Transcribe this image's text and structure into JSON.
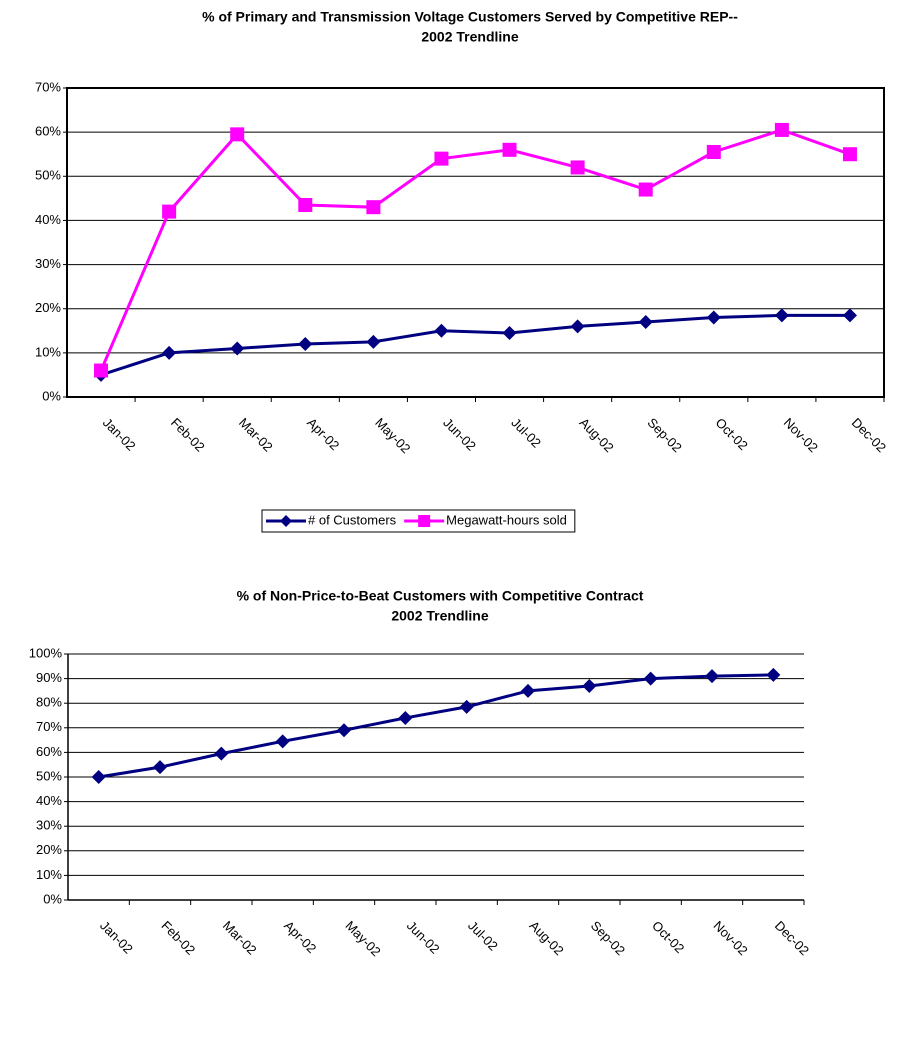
{
  "chart_data": [
    {
      "type": "line",
      "title": [
        "% of Primary and Transmission Voltage Customers Served by Competitive REP--",
        "2002 Trendline"
      ],
      "categories": [
        "Jan-02",
        "Feb-02",
        "Mar-02",
        "Apr-02",
        "May-02",
        "Jun-02",
        "Jul-02",
        "Aug-02",
        "Sep-02",
        "Oct-02",
        "Nov-02",
        "Dec-02"
      ],
      "series": [
        {
          "name": "# of Customers",
          "color": "#000080",
          "marker": "diamond",
          "values": [
            5,
            10,
            11,
            12,
            12.5,
            15,
            14.5,
            16,
            17,
            18,
            18.5,
            18.5
          ]
        },
        {
          "name": "Megawatt-hours sold",
          "color": "#ff00ff",
          "marker": "square",
          "values": [
            6,
            42,
            59.5,
            43.5,
            43,
            54,
            56,
            52,
            47,
            55.5,
            60.5,
            55
          ]
        }
      ],
      "ylim": [
        0,
        70
      ],
      "yticks": [
        {
          "value": 0,
          "label": "0%"
        },
        {
          "value": 10,
          "label": "10%"
        },
        {
          "value": 20,
          "label": "20%"
        },
        {
          "value": 30,
          "label": "30%"
        },
        {
          "value": 40,
          "label": "40%"
        },
        {
          "value": 50,
          "label": "50%"
        },
        {
          "value": 60,
          "label": "60%"
        },
        {
          "value": 70,
          "label": "70%"
        }
      ],
      "grid": true,
      "frame": true,
      "legend": "bottom"
    },
    {
      "type": "line",
      "title": [
        "% of Non-Price-to-Beat Customers with Competitive Contract",
        "2002 Trendline"
      ],
      "categories": [
        "Jan-02",
        "Feb-02",
        "Mar-02",
        "Apr-02",
        "May-02",
        "Jun-02",
        "Jul-02",
        "Aug-02",
        "Sep-02",
        "Oct-02",
        "Nov-02",
        "Dec-02"
      ],
      "series": [
        {
          "color": "#000080",
          "marker": "diamond",
          "values": [
            50,
            54,
            59.5,
            64.5,
            69,
            74,
            78.5,
            85,
            87,
            90,
            91,
            91.5
          ]
        }
      ],
      "ylim": [
        0,
        100
      ],
      "yticks": [
        {
          "value": 0,
          "label": "0%"
        },
        {
          "value": 10,
          "label": "10%"
        },
        {
          "value": 20,
          "label": "20%"
        },
        {
          "value": 30,
          "label": "30%"
        },
        {
          "value": 40,
          "label": "40%"
        },
        {
          "value": 50,
          "label": "50%"
        },
        {
          "value": 60,
          "label": "60%"
        },
        {
          "value": 70,
          "label": "70%"
        },
        {
          "value": 80,
          "label": "80%"
        },
        {
          "value": 90,
          "label": "90%"
        },
        {
          "value": 100,
          "label": "100%"
        }
      ],
      "grid": true,
      "frame": false
    }
  ]
}
